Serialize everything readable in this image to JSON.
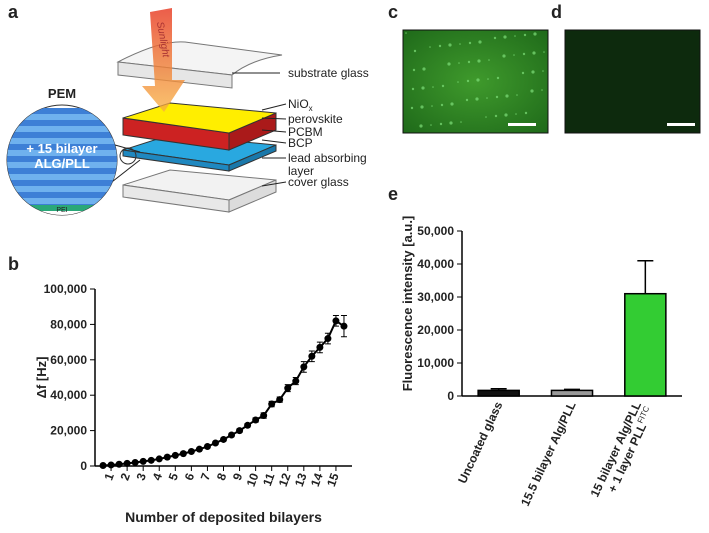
{
  "panels": [
    "a",
    "b",
    "c",
    "d",
    "e"
  ],
  "diagram": {
    "sunlight": "Sunlight",
    "pem_title": "PEM",
    "pem_label": [
      "+ 15 bilayer",
      "ALG/PLL"
    ],
    "pei": "PEI",
    "labels": [
      "substrate glass",
      [
        "NiO",
        "x"
      ],
      "perovskite",
      "PCBM",
      "BCP",
      [
        "lead absorbing",
        "layer"
      ],
      "cover glass"
    ]
  },
  "chart_data": [
    {
      "type": "line",
      "ylabel": "Δf [Hz]",
      "xlabel": "Number of deposited bilayers",
      "color": "#000000",
      "x": [
        0.5,
        1,
        1.5,
        2,
        2.5,
        3,
        3.5,
        4,
        4.5,
        5,
        5.5,
        6,
        6.5,
        7,
        7.5,
        8,
        8.5,
        9,
        9.5,
        10,
        10.5,
        11,
        11.5,
        12,
        12.5,
        13,
        13.5,
        14,
        14.5,
        15,
        15.5
      ],
      "values": [
        300,
        600,
        1000,
        1500,
        2000,
        2600,
        3200,
        4000,
        5000,
        6000,
        7000,
        8200,
        9500,
        11000,
        13000,
        15000,
        17500,
        20000,
        23000,
        26000,
        28500,
        35000,
        37500,
        44000,
        48000,
        56000,
        62000,
        67000,
        72000,
        82000,
        79000
      ],
      "errors": [
        300,
        300,
        300,
        300,
        300,
        400,
        400,
        400,
        500,
        500,
        500,
        600,
        600,
        700,
        700,
        800,
        900,
        1000,
        1000,
        1200,
        1500,
        1500,
        1500,
        2000,
        2000,
        3000,
        3000,
        3000,
        3000,
        3000,
        6000
      ],
      "xlim": [
        0,
        16
      ],
      "xticks": [
        1,
        2,
        3,
        4,
        5,
        6,
        7,
        8,
        9,
        10,
        11,
        12,
        13,
        14,
        15
      ],
      "ylim": [
        0,
        100000
      ],
      "yticks": [
        0,
        {
          "value": 20000,
          "label": "20,000"
        },
        {
          "value": 40000,
          "label": "40,000"
        },
        {
          "value": 60000,
          "label": "60,000"
        },
        {
          "value": 80000,
          "label": "80,000"
        },
        {
          "value": 100000,
          "label": "100,000"
        }
      ]
    },
    {
      "type": "bar",
      "ylabel": "Fluorescence intensity [a.u.]",
      "categories": [
        "Uncoated glass",
        "15.5 bilayer Alg/PLL",
        {
          "lines": [
            "15 bilayer Alg/PLL",
            "+ 1 layer PLL"
          ],
          "sup": "FITC"
        }
      ],
      "values": [
        1700,
        1700,
        31000
      ],
      "errors": [
        500,
        300,
        10000
      ],
      "colors": [
        "#111111",
        "#999999",
        "#33cc33"
      ],
      "ylim": [
        0,
        50000
      ],
      "yticks": [
        0,
        {
          "value": 10000,
          "label": "10,000"
        },
        {
          "value": 20000,
          "label": "20,000"
        },
        {
          "value": 30000,
          "label": "30,000"
        },
        {
          "value": 40000,
          "label": "40,000"
        },
        {
          "value": 50000,
          "label": "50,000"
        }
      ]
    }
  ]
}
